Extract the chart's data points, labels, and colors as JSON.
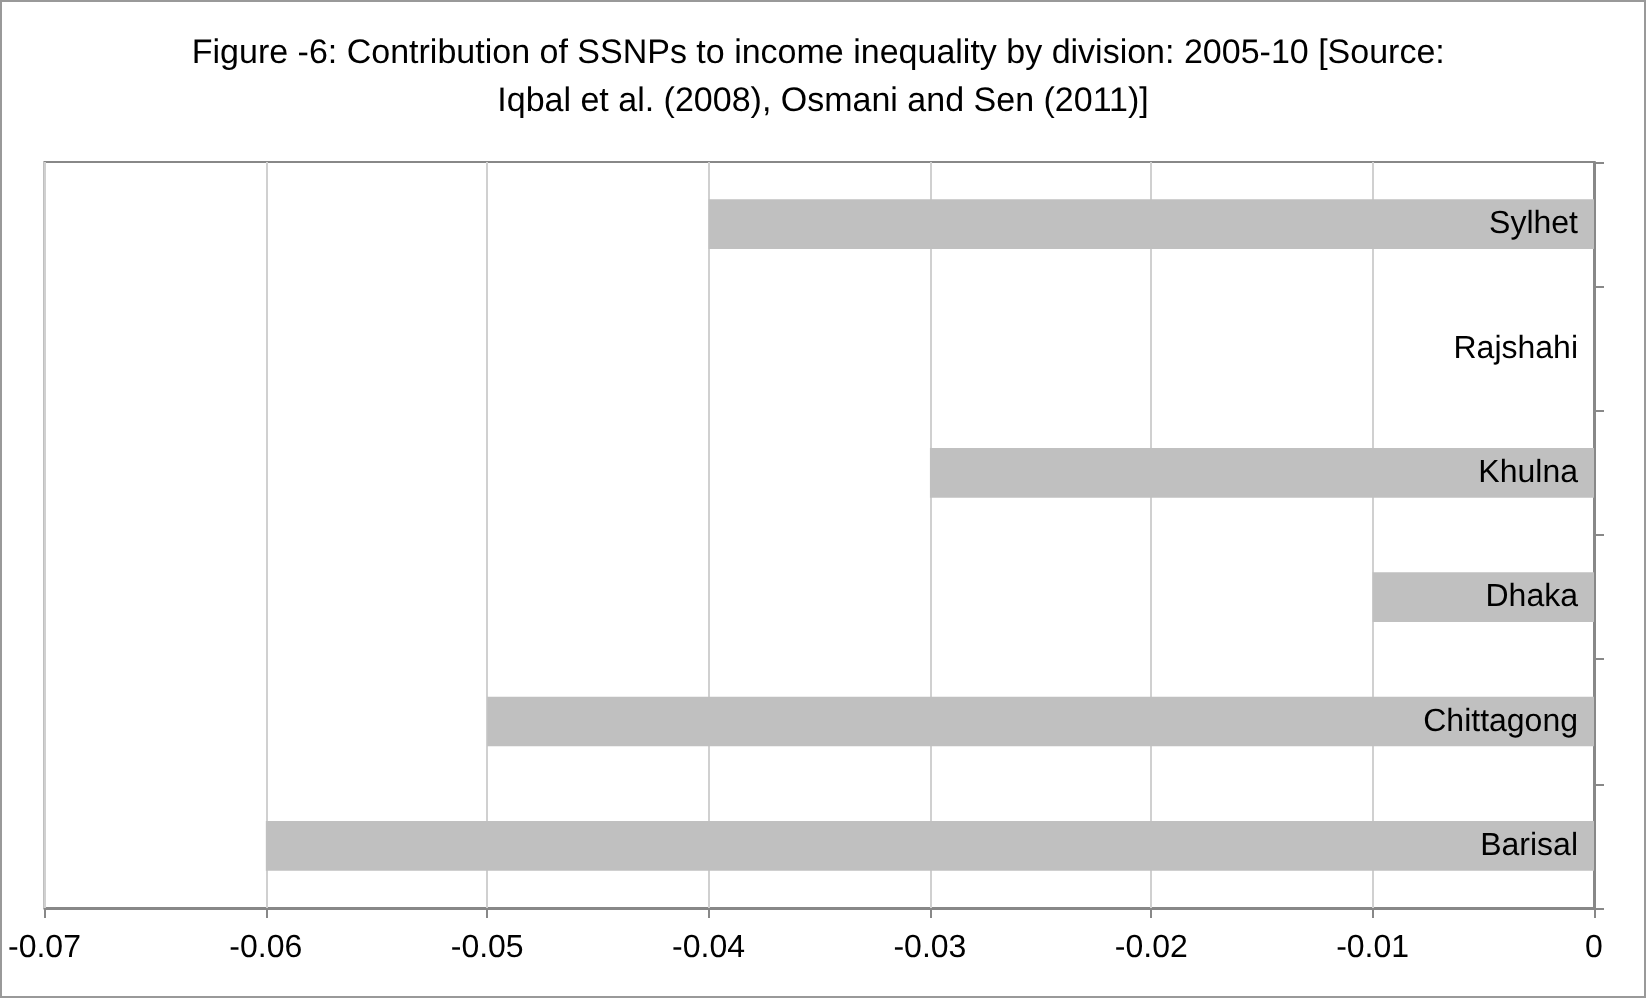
{
  "chart_data": {
    "type": "bar",
    "orientation": "horizontal",
    "title": "Figure -6: Contribution of SSNPs to income inequality by division: 2005-10 [Source: Iqbal et al. (2008), Osmani and Sen (2011)]",
    "categories": [
      "Sylhet",
      "Rajshahi",
      "Khulna",
      "Dhaka",
      "Chittagong",
      "Barisal"
    ],
    "values": [
      -0.04,
      0,
      -0.03,
      -0.01,
      -0.05,
      -0.06
    ],
    "color": "#c0c0c0",
    "xlim": [
      -0.07,
      0
    ],
    "xticks": [
      -0.07,
      -0.06,
      -0.05,
      -0.04,
      -0.03,
      -0.02,
      -0.01,
      0
    ],
    "grid": "x"
  }
}
